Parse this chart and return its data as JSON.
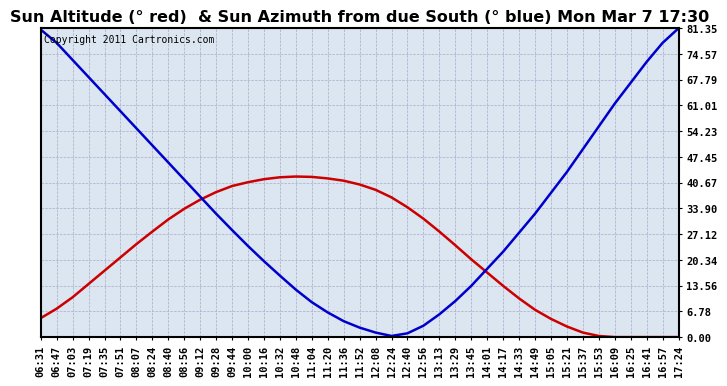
{
  "title": "Sun Altitude (° red)  & Sun Azimuth from due South (° blue) Mon Mar 7 17:30",
  "copyright_text": "Copyright 2011 Cartronics.com",
  "ymax": 81.35,
  "yticks": [
    0.0,
    6.78,
    13.56,
    20.34,
    27.12,
    33.9,
    40.67,
    47.45,
    54.23,
    61.01,
    67.79,
    74.57,
    81.35
  ],
  "ytick_labels": [
    "0.00",
    "6.78",
    "13.56",
    "20.34",
    "27.12",
    "33.90",
    "40.67",
    "47.45",
    "54.23",
    "61.01",
    "67.79",
    "74.57",
    "81.35"
  ],
  "time_labels": [
    "06:31",
    "06:47",
    "07:03",
    "07:19",
    "07:35",
    "07:51",
    "08:07",
    "08:24",
    "08:40",
    "08:56",
    "09:12",
    "09:28",
    "09:44",
    "10:00",
    "10:16",
    "10:32",
    "10:48",
    "11:04",
    "11:20",
    "11:36",
    "11:52",
    "12:08",
    "12:24",
    "12:40",
    "12:56",
    "13:13",
    "13:29",
    "13:45",
    "14:01",
    "14:17",
    "14:33",
    "14:49",
    "15:05",
    "15:21",
    "15:37",
    "15:53",
    "16:09",
    "16:25",
    "16:41",
    "16:57",
    "17:24"
  ],
  "red_line": [
    5.0,
    7.5,
    10.5,
    14.0,
    17.5,
    21.0,
    24.5,
    27.8,
    31.0,
    33.8,
    36.2,
    38.2,
    39.8,
    40.8,
    41.6,
    42.1,
    42.3,
    42.2,
    41.8,
    41.2,
    40.2,
    38.8,
    36.8,
    34.2,
    31.2,
    27.8,
    24.2,
    20.5,
    17.0,
    13.5,
    10.2,
    7.2,
    4.8,
    2.8,
    1.2,
    0.3,
    0.0,
    0.0,
    0.0,
    0.0,
    0.0
  ],
  "blue_line": [
    81.0,
    77.5,
    73.0,
    68.5,
    64.0,
    59.5,
    55.0,
    50.5,
    46.0,
    41.5,
    37.0,
    32.5,
    28.2,
    24.0,
    20.0,
    16.2,
    12.5,
    9.2,
    6.5,
    4.2,
    2.5,
    1.2,
    0.3,
    1.0,
    3.0,
    6.0,
    9.5,
    13.5,
    18.0,
    22.5,
    27.5,
    32.5,
    38.0,
    43.5,
    49.5,
    55.5,
    61.5,
    67.0,
    72.5,
    77.5,
    81.35
  ],
  "bg_color": "#ffffff",
  "plot_bg_color": "#dce6f0",
  "grid_color": "#aaaacc",
  "red_color": "#cc0000",
  "blue_color": "#0000cc",
  "title_fontsize": 11.5,
  "tick_fontsize": 7.5,
  "copyright_fontsize": 7
}
